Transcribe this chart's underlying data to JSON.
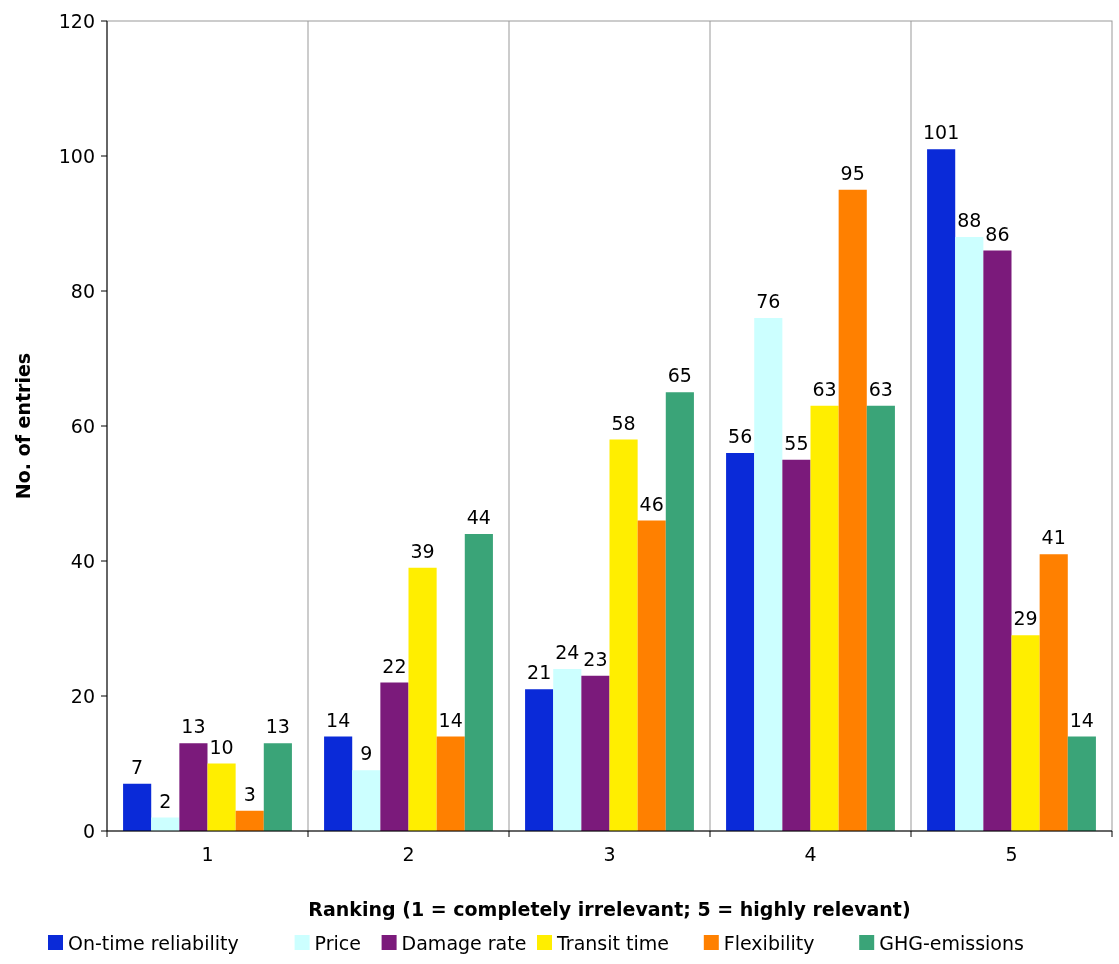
{
  "chart_data": {
    "type": "bar",
    "xlabel": "Ranking (1 = completely irrelevant; 5 = highly relevant)",
    "ylabel": "No. of entries",
    "categories": [
      "1",
      "2",
      "3",
      "4",
      "5"
    ],
    "series": [
      {
        "name": "On-time reliability",
        "color": "#0a2ad8",
        "values": [
          7,
          14,
          21,
          56,
          101
        ]
      },
      {
        "name": "Price",
        "color": "#ccffff",
        "values": [
          2,
          9,
          24,
          76,
          88
        ]
      },
      {
        "name": "Damage rate",
        "color": "#7b1a7b",
        "values": [
          13,
          22,
          23,
          55,
          86
        ]
      },
      {
        "name": "Transit time",
        "color": "#ffee00",
        "values": [
          10,
          39,
          58,
          63,
          29
        ]
      },
      {
        "name": "Flexibility",
        "color": "#ff8000",
        "values": [
          3,
          14,
          46,
          95,
          41
        ]
      },
      {
        "name": "GHG-emissions",
        "color": "#3aa478",
        "values": [
          13,
          44,
          65,
          63,
          14
        ]
      }
    ],
    "ylim": [
      0,
      120
    ],
    "yticks": [
      0,
      20,
      40,
      60,
      80,
      100,
      120
    ],
    "grid": "x",
    "legend": "bottom",
    "data_labels": true
  }
}
